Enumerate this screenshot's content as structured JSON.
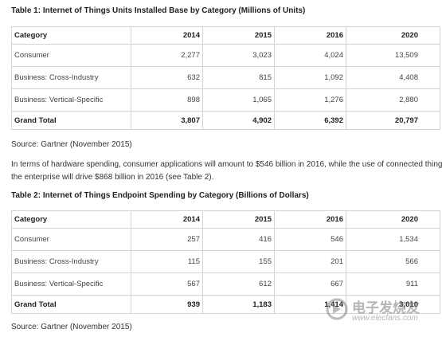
{
  "table1": {
    "title": "Table 1: Internet of Things Units Installed Base by Category (Millions of Units)",
    "columns": [
      "Category",
      "2014",
      "2015",
      "2016",
      "2020"
    ],
    "rows": [
      [
        "Consumer",
        "2,277",
        "3,023",
        "4,024",
        "13,509"
      ],
      [
        "Business: Cross-Industry",
        "632",
        "815",
        "1,092",
        "4,408"
      ],
      [
        "Business: Vertical-Specific",
        "898",
        "1,065",
        "1,276",
        "2,880"
      ],
      [
        "Grand Total",
        "3,807",
        "4,902",
        "6,392",
        "20,797"
      ]
    ]
  },
  "source1": "Source: Gartner (November 2015)",
  "paragraph": [
    "In terms of hardware spending, consumer applications will amount to $546 billion in 2016, while the use of connected things in",
    "the enterprise will drive $868 billion in 2016 (see Table 2)."
  ],
  "table2": {
    "title": "Table 2: Internet of Things Endpoint Spending by Category (Billions of Dollars)",
    "columns": [
      "Category",
      "2014",
      "2015",
      "2016",
      "2020"
    ],
    "rows": [
      [
        "Consumer",
        "257",
        "416",
        "546",
        "1,534"
      ],
      [
        "Business: Cross-Industry",
        "115",
        "155",
        "201",
        "566"
      ],
      [
        "Business: Vertical-Specific",
        "567",
        "612",
        "667",
        "911"
      ],
      [
        "Grand Total",
        "939",
        "1,183",
        "1,414",
        "3,010"
      ]
    ]
  },
  "source2": "Source: Gartner (November 2015)",
  "watermark": {
    "brand": "电子发烧友",
    "url": "www.elecfans.com"
  }
}
